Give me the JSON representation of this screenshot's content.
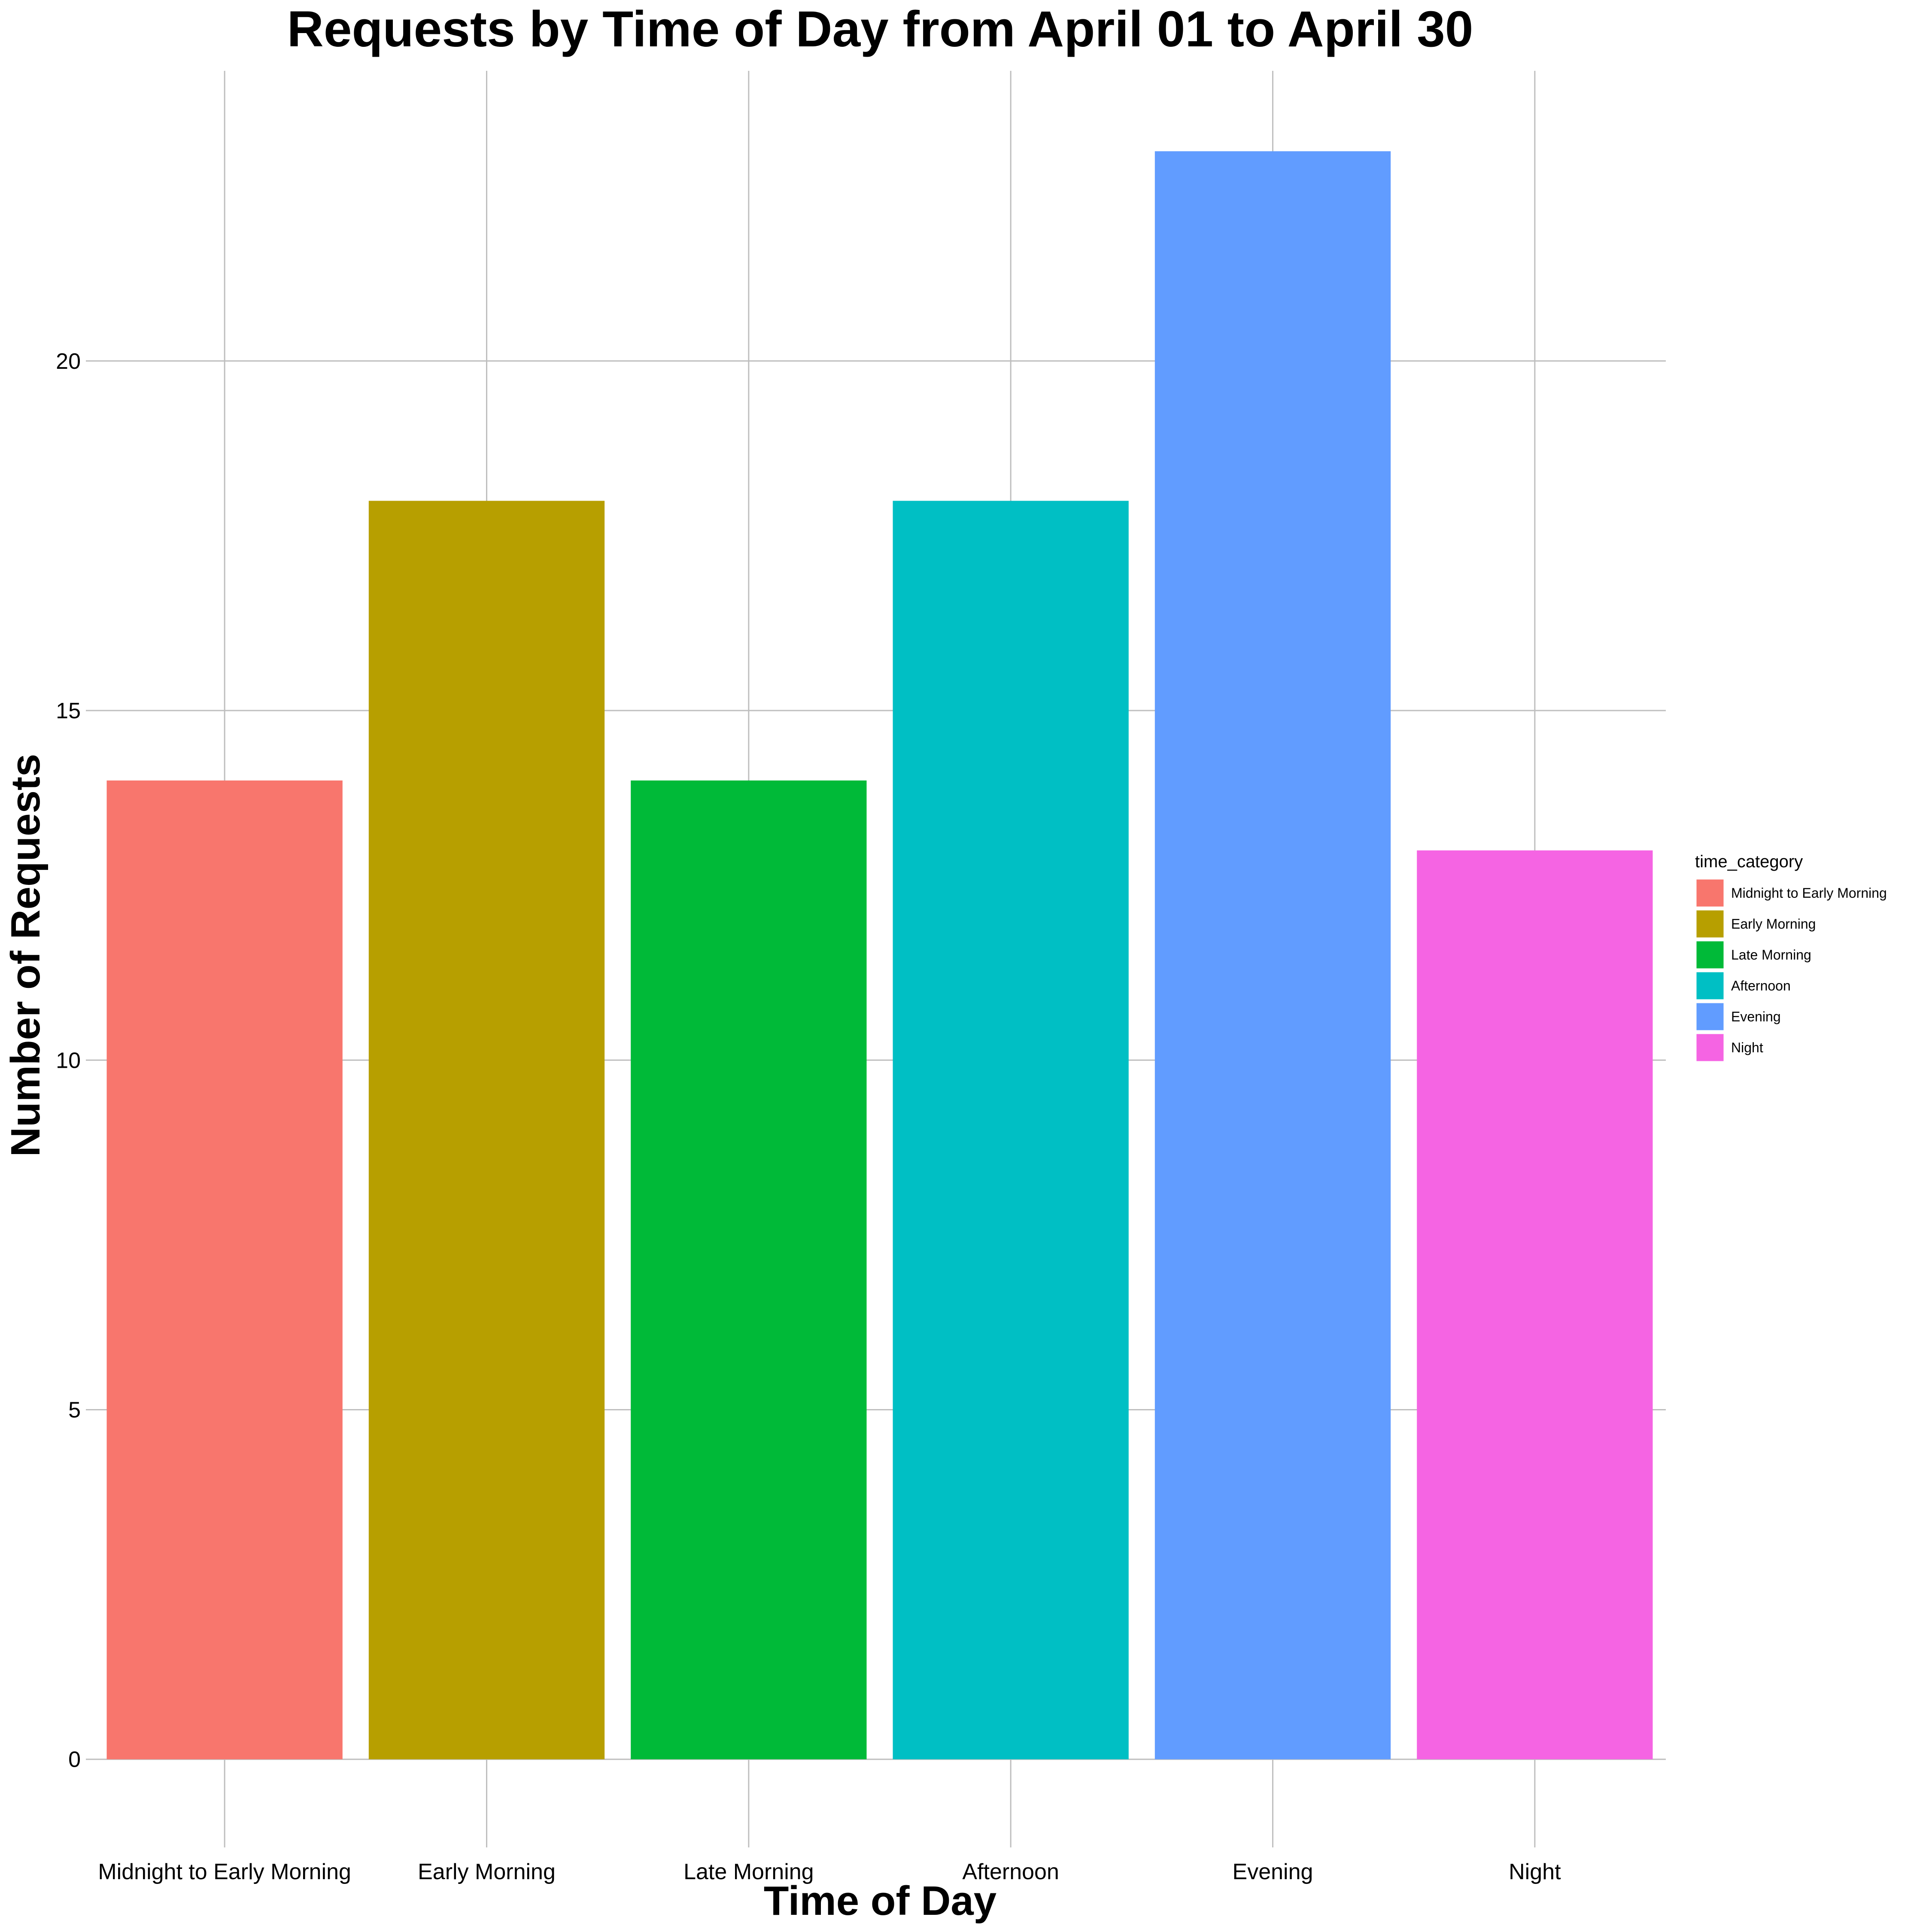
{
  "chart_data": {
    "type": "bar",
    "title": "Requests by Time of Day from April 01 to April 30",
    "xlabel": "Time of Day",
    "ylabel": "Number of Requests",
    "categories": [
      "Midnight to Early Morning",
      "Early Morning",
      "Late Morning",
      "Afternoon",
      "Evening",
      "Night"
    ],
    "values": [
      14,
      18,
      14,
      18,
      23,
      13
    ],
    "colors": [
      "#F8766D",
      "#B79F00",
      "#00BA38",
      "#00BFC4",
      "#619CFF",
      "#F564E3"
    ],
    "ylim": [
      -1.15,
      24.15
    ],
    "yticks": [
      0,
      5,
      10,
      15,
      20
    ],
    "grid": true,
    "legend": {
      "title": "time_category",
      "position": "right",
      "entries": [
        "Midnight to Early Morning",
        "Early Morning",
        "Late Morning",
        "Afternoon",
        "Evening",
        "Night"
      ]
    }
  }
}
